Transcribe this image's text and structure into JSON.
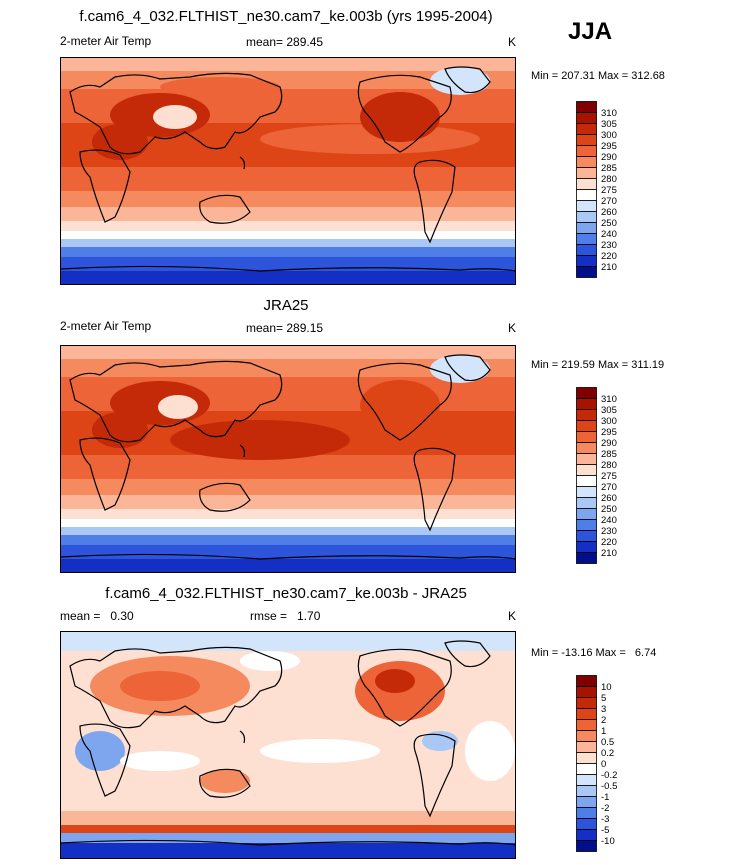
{
  "season": "JJA",
  "panels": [
    {
      "title": "f.cam6_4_032.FLTHIST_ne30.cam7_ke.003b (yrs 1995-2004)",
      "variable": "2-meter Air Temp",
      "stat": "mean= 289.45",
      "units": "K",
      "minmax": "Min = 207.31 Max = 312.68"
    },
    {
      "title": "JRA25",
      "variable": "2-meter Air Temp",
      "stat": "mean= 289.15",
      "units": "K",
      "minmax": "Min = 219.59 Max = 311.19"
    },
    {
      "title": "f.cam6_4_032.FLTHIST_ne30.cam7_ke.003b - JRA25",
      "variable": "mean =   0.30",
      "stat": "rmse =   1.70",
      "units": "K",
      "minmax": "Min = -13.16 Max =   6.74"
    }
  ],
  "chart_data": [
    {
      "type": "heatmap",
      "title": "f.cam6_4_032.FLTHIST_ne30.cam7_ke.003b (yrs 1995-2004)",
      "subtitle": "2-meter Air Temp",
      "units": "K",
      "mean": 289.45,
      "min": 207.31,
      "max": 312.68,
      "colorbar_levels": [
        "310",
        "305",
        "300",
        "295",
        "290",
        "285",
        "280",
        "275",
        "270",
        "260",
        "250",
        "240",
        "230",
        "220",
        "210"
      ],
      "colors": [
        "#7f0000",
        "#a81300",
        "#c52a08",
        "#de4516",
        "#ec6437",
        "#f58a5e",
        "#fbb69a",
        "#fde0d2",
        "#ffffff",
        "#d3e5fb",
        "#a9c8f5",
        "#7ea6ee",
        "#4f7ee8",
        "#2c55db",
        "#1430c4",
        "#00108c"
      ]
    },
    {
      "type": "heatmap",
      "title": "JRA25",
      "subtitle": "2-meter Air Temp",
      "units": "K",
      "mean": 289.15,
      "min": 219.59,
      "max": 311.19,
      "colorbar_levels": [
        "310",
        "305",
        "300",
        "295",
        "290",
        "285",
        "280",
        "275",
        "270",
        "260",
        "250",
        "240",
        "230",
        "220",
        "210"
      ],
      "colors": [
        "#7f0000",
        "#a81300",
        "#c52a08",
        "#de4516",
        "#ec6437",
        "#f58a5e",
        "#fbb69a",
        "#fde0d2",
        "#ffffff",
        "#d3e5fb",
        "#a9c8f5",
        "#7ea6ee",
        "#4f7ee8",
        "#2c55db",
        "#1430c4",
        "#00108c"
      ]
    },
    {
      "type": "heatmap",
      "title": "f.cam6_4_032.FLTHIST_ne30.cam7_ke.003b - JRA25",
      "units": "K",
      "mean": 0.3,
      "rmse": 1.7,
      "min": -13.16,
      "max": 6.74,
      "colorbar_levels": [
        "10",
        "5",
        "3",
        "2",
        "1",
        "0.5",
        "0.2",
        "0",
        "-0.2",
        "-0.5",
        "-1",
        "-2",
        "-3",
        "-5",
        "-10"
      ],
      "colors": [
        "#7f0000",
        "#a81300",
        "#c52a08",
        "#de4516",
        "#ec6437",
        "#f58a5e",
        "#fbb69a",
        "#fde0d2",
        "#ffffff",
        "#d3e5fb",
        "#a9c8f5",
        "#7ea6ee",
        "#4f7ee8",
        "#2c55db",
        "#1430c4",
        "#00108c"
      ]
    }
  ]
}
